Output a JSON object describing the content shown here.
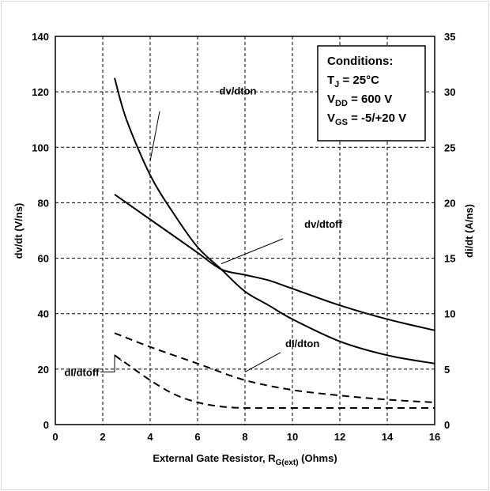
{
  "chart_data": {
    "type": "line",
    "xlabel": {
      "main": "External Gate Resistor, R",
      "sub": "G(ext)",
      "tail": " (Ohms)"
    },
    "ylabel": "dv/dt (V/ns)",
    "y2label": "di/dt (A/ns)",
    "xlim": [
      0,
      16
    ],
    "ylim": [
      0,
      140
    ],
    "y2lim": [
      0,
      35
    ],
    "xticks": [
      "0",
      "2",
      "4",
      "6",
      "8",
      "10",
      "12",
      "14",
      "16"
    ],
    "yticks": [
      "0",
      "20",
      "40",
      "60",
      "80",
      "100",
      "120",
      "140"
    ],
    "y2ticks": [
      "0",
      "5",
      "10",
      "15",
      "20",
      "25",
      "30",
      "35"
    ],
    "grid": true,
    "series": [
      {
        "name": "dv/dton",
        "axis": "left",
        "style": "solid",
        "x": [
          2.5,
          3,
          4,
          5,
          6,
          7,
          8,
          9,
          10,
          12,
          14,
          16
        ],
        "y": [
          125,
          110,
          90,
          76,
          64,
          56,
          48,
          43,
          38,
          30,
          25,
          22
        ]
      },
      {
        "name": "dv/dtoff",
        "axis": "left",
        "style": "solid",
        "x": [
          2.5,
          3,
          4,
          5,
          6,
          7,
          8,
          9,
          10,
          12,
          14,
          16
        ],
        "y": [
          83,
          80,
          74,
          68,
          62,
          56,
          54,
          52,
          49,
          43,
          38,
          34
        ]
      },
      {
        "name": "di/dton",
        "axis": "left",
        "style": "dashed",
        "x": [
          2.5,
          4,
          6,
          8,
          10,
          12,
          14,
          16
        ],
        "y": [
          33,
          28,
          22,
          16,
          12.5,
          10.5,
          9,
          8
        ]
      },
      {
        "name": "di/dtoff",
        "axis": "left",
        "style": "dashed",
        "x": [
          2.5,
          3,
          4,
          5,
          6,
          7,
          8,
          9,
          10,
          12,
          14,
          16
        ],
        "y": [
          25,
          22,
          16,
          11,
          8,
          6.5,
          6,
          6,
          6,
          6,
          6,
          6
        ]
      }
    ],
    "annotations": [
      {
        "text": "dv/dton"
      },
      {
        "text": "dv/dtoff"
      },
      {
        "text": "dI/dton"
      },
      {
        "text": "dI/dtoff"
      }
    ],
    "conditions": {
      "title": "Conditions:",
      "lines": [
        {
          "main": "T",
          "sub": "J",
          "tail": " = 25°C"
        },
        {
          "main": "V",
          "sub": "DD",
          "tail": " = 600 V"
        },
        {
          "main": "V",
          "sub": "GS",
          "tail": " = -5/+20 V"
        }
      ]
    }
  }
}
